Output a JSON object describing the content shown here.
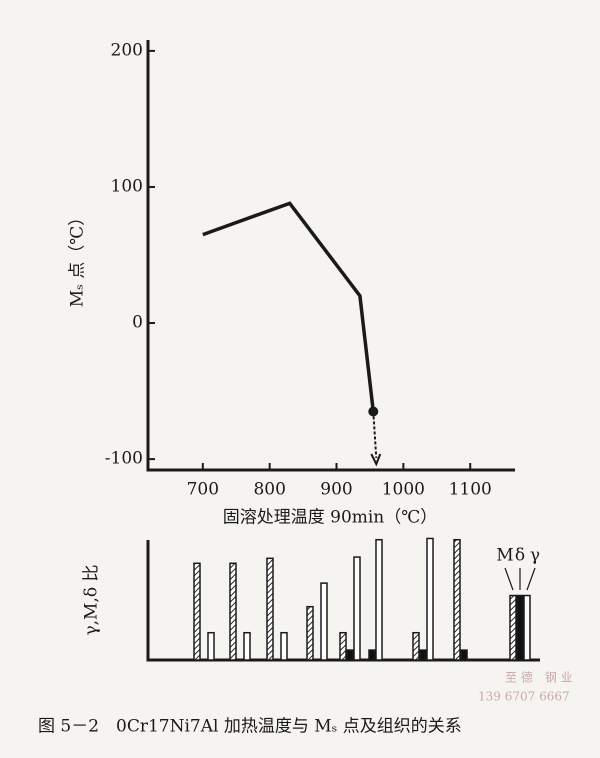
{
  "chart_data": [
    {
      "type": "line",
      "y_label": "Mₛ 点（℃）",
      "x_label": "固溶处理温度 90min（℃）",
      "x": [
        700,
        830,
        935,
        955
      ],
      "values": [
        65,
        88,
        20,
        -65
      ],
      "color": "#1a1a1a",
      "xlim": [
        618,
        1167
      ],
      "ylim": [
        -108,
        208
      ],
      "xticks": [
        700,
        800,
        900,
        1000,
        1100
      ],
      "yticks": [
        -100,
        0,
        100,
        200
      ]
    },
    {
      "type": "bar",
      "y_label": "γ,M,δ 比",
      "categories": [
        null,
        null,
        null,
        null,
        null,
        null,
        null,
        null,
        null
      ],
      "ylim": [
        0,
        100
      ],
      "series": [
        {
          "name": "M",
          "color": "hatch",
          "values": [
            78,
            78,
            82,
            43,
            22,
            0,
            22,
            97,
            52
          ]
        },
        {
          "name": "δ",
          "color": "#111111",
          "values": [
            0,
            0,
            0,
            0,
            8,
            8,
            8,
            8,
            52
          ]
        },
        {
          "name": "γ",
          "color": "#ffffff",
          "values": [
            22,
            22,
            22,
            62,
            83,
            97,
            98,
            0,
            52
          ]
        }
      ]
    }
  ],
  "caption": "图 5－2　0Cr17Ni7Al 加热温度与 Mₛ 点及组织的关系",
  "watermark": [
    "至 德　钢 业",
    "139 6707 6667"
  ]
}
